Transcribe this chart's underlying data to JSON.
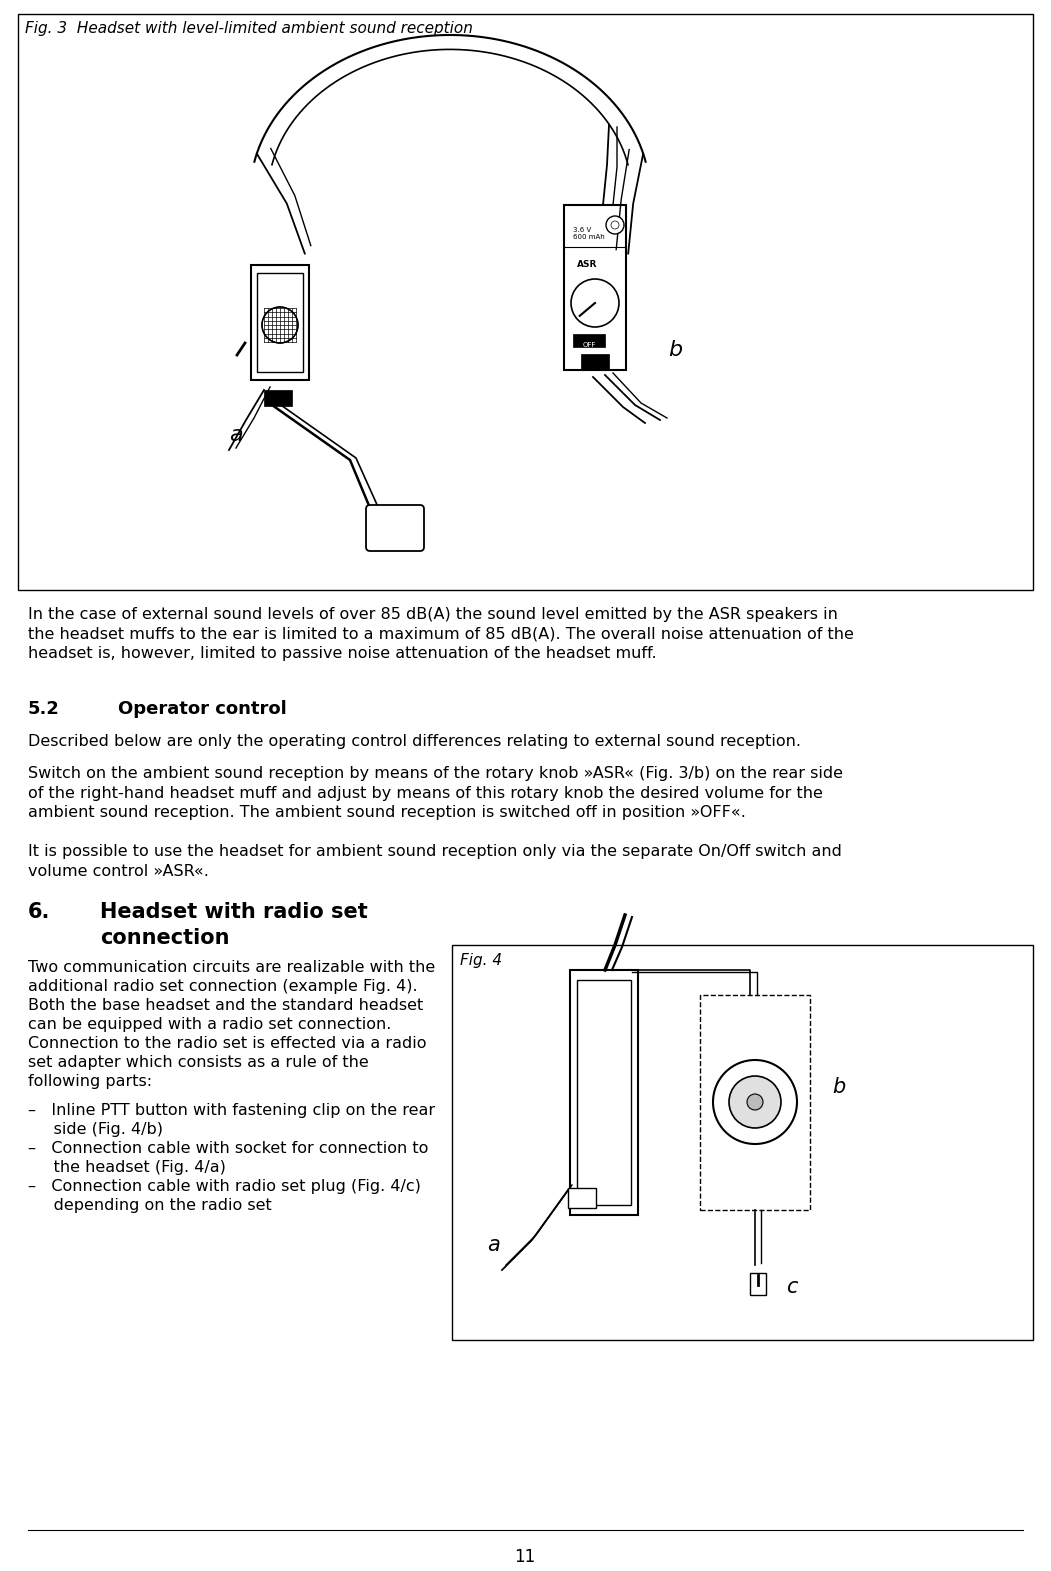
{
  "page_number": "11",
  "background_color": "#ffffff",
  "border_color": "#000000",
  "fig3_caption": "Fig. 3  Headset with level-limited ambient sound reception",
  "fig4_caption": "Fig. 4",
  "body_text_color": "#000000",
  "section_52_number": "5.2",
  "section_52_title": "Operator control",
  "section_6_number": "6.",
  "section_6_title_line1": "Headset with radio set",
  "section_6_title_line2": "connection",
  "para1": "In the case of external sound levels of over 85 dB(A) the sound level emitted by the ASR speakers in\nthe headset muffs to the ear is limited to a maximum of 85 dB(A). The overall noise attenuation of the\nheadset is, however, limited to passive noise attenuation of the headset muff.",
  "para52a": "Described below are only the operating control differences relating to external sound reception.",
  "para52b": "Switch on the ambient sound reception by means of the rotary knob »ASR« (Fig. 3/b) on the rear side\nof the right-hand headset muff and adjust by means of this rotary knob the desired volume for the\nambient sound reception. The ambient sound reception is switched off in position »OFF«.",
  "para52c": "It is possible to use the headset for ambient sound reception only via the separate On/Off switch and\nvolume control »ASR«.",
  "para6a_line1": "Two communication circuits are realizable with the",
  "para6a_line2": "additional radio set connection (example Fig. 4).",
  "para6a_line3": "Both the base headset and the standard headset",
  "para6a_line4": "can be equipped with a radio set connection.",
  "para6a_line5": "Connection to the radio set is effected via a radio",
  "para6a_line6": "set adapter which consists as a rule of the",
  "para6a_line7": "following parts:",
  "bullet1_line1": "–   Inline PTT button with fastening clip on the rear",
  "bullet1_line2": "     side (Fig. 4/b)",
  "bullet2_line1": "–   Connection cable with socket for connection to",
  "bullet2_line2": "     the headset (Fig. 4/a)",
  "bullet3_line1": "–   Connection cable with radio set plug (Fig. 4/c)",
  "bullet3_line2": "     depending on the radio set",
  "font_body": 11.5,
  "font_heading52": 13.0,
  "font_heading6": 15.0,
  "font_caption_fig3": 11.0,
  "font_caption_fig4": 11.0
}
